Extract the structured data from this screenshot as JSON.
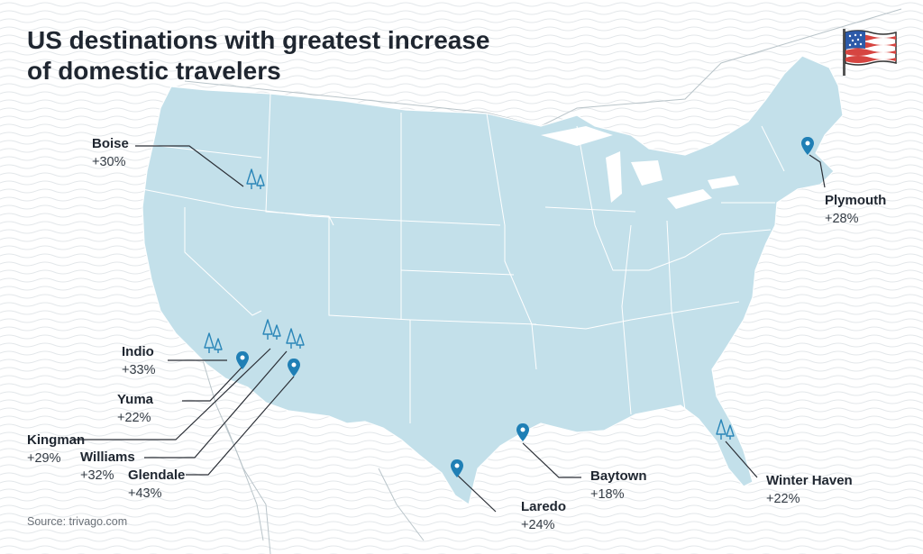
{
  "title_lines": [
    "US destinations with greatest increase",
    "of domestic travelers"
  ],
  "source": "Source: trivago.com",
  "colors": {
    "land": "#c3e0ea",
    "border": "#ffffff",
    "text": "#1f2630",
    "pin": "#1f7fb5",
    "tree": "#2a86b8",
    "leader": "#2b2f36",
    "flag_red": "#d64541",
    "flag_blue": "#2d5aa8"
  },
  "icons": {
    "pin": "map-pin-icon",
    "tree": "pine-trees-icon",
    "flag": "us-flag-icon"
  },
  "destinations": [
    {
      "name": "Boise",
      "change": "+30%",
      "marker": "tree"
    },
    {
      "name": "Plymouth",
      "change": "+28%",
      "marker": "pin"
    },
    {
      "name": "Indio",
      "change": "+33%",
      "marker": "tree"
    },
    {
      "name": "Yuma",
      "change": "+22%",
      "marker": "pin"
    },
    {
      "name": "Kingman",
      "change": "+29%",
      "marker": "tree"
    },
    {
      "name": "Williams",
      "change": "+32%",
      "marker": "tree"
    },
    {
      "name": "Glendale",
      "change": "+43%",
      "marker": "pin"
    },
    {
      "name": "Baytown",
      "change": "+18%",
      "marker": "pin"
    },
    {
      "name": "Laredo",
      "change": "+24%",
      "marker": "pin"
    },
    {
      "name": "Winter Haven",
      "change": "+22%",
      "marker": "tree"
    }
  ]
}
